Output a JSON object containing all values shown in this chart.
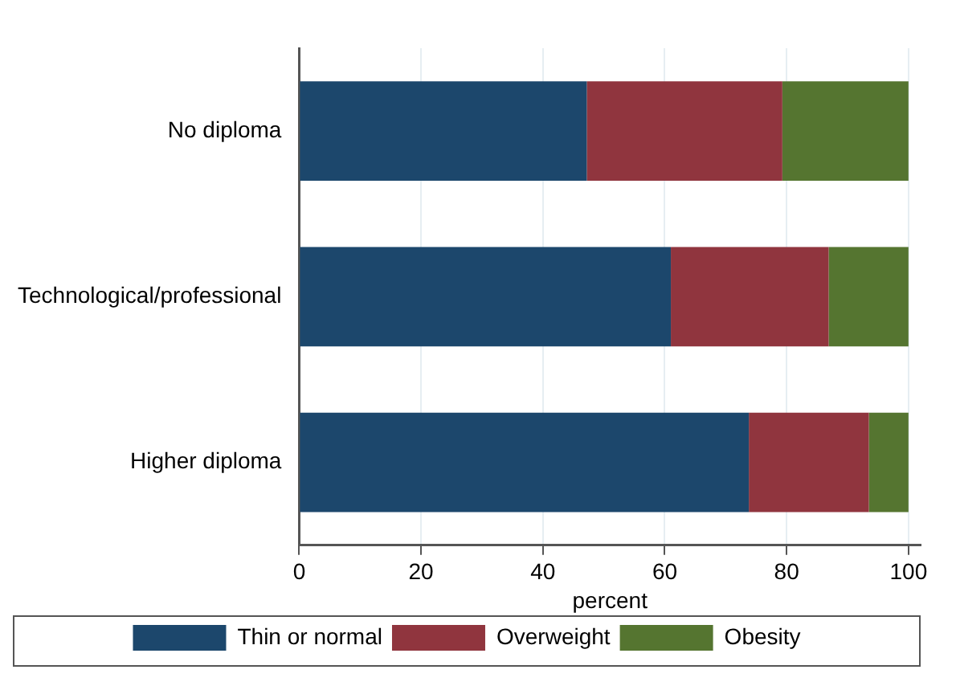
{
  "chart_data": {
    "type": "bar",
    "orientation": "horizontal",
    "stacked": true,
    "xlabel": "percent",
    "categories": [
      "No diploma",
      "Technological/professional",
      "Higher diploma"
    ],
    "series": [
      {
        "name": "Thin or normal",
        "color": "#1c476c",
        "values": [
          47.2,
          61.0,
          73.8
        ]
      },
      {
        "name": "Overweight",
        "color": "#90353e",
        "values": [
          32.1,
          25.9,
          19.7
        ]
      },
      {
        "name": "Obesity",
        "color": "#557530",
        "values": [
          20.7,
          13.1,
          6.5
        ]
      }
    ],
    "xlim": [
      0,
      102
    ],
    "xticks": [
      0,
      20,
      40,
      60,
      80,
      100
    ],
    "grid": "x",
    "legend": "bottom"
  }
}
